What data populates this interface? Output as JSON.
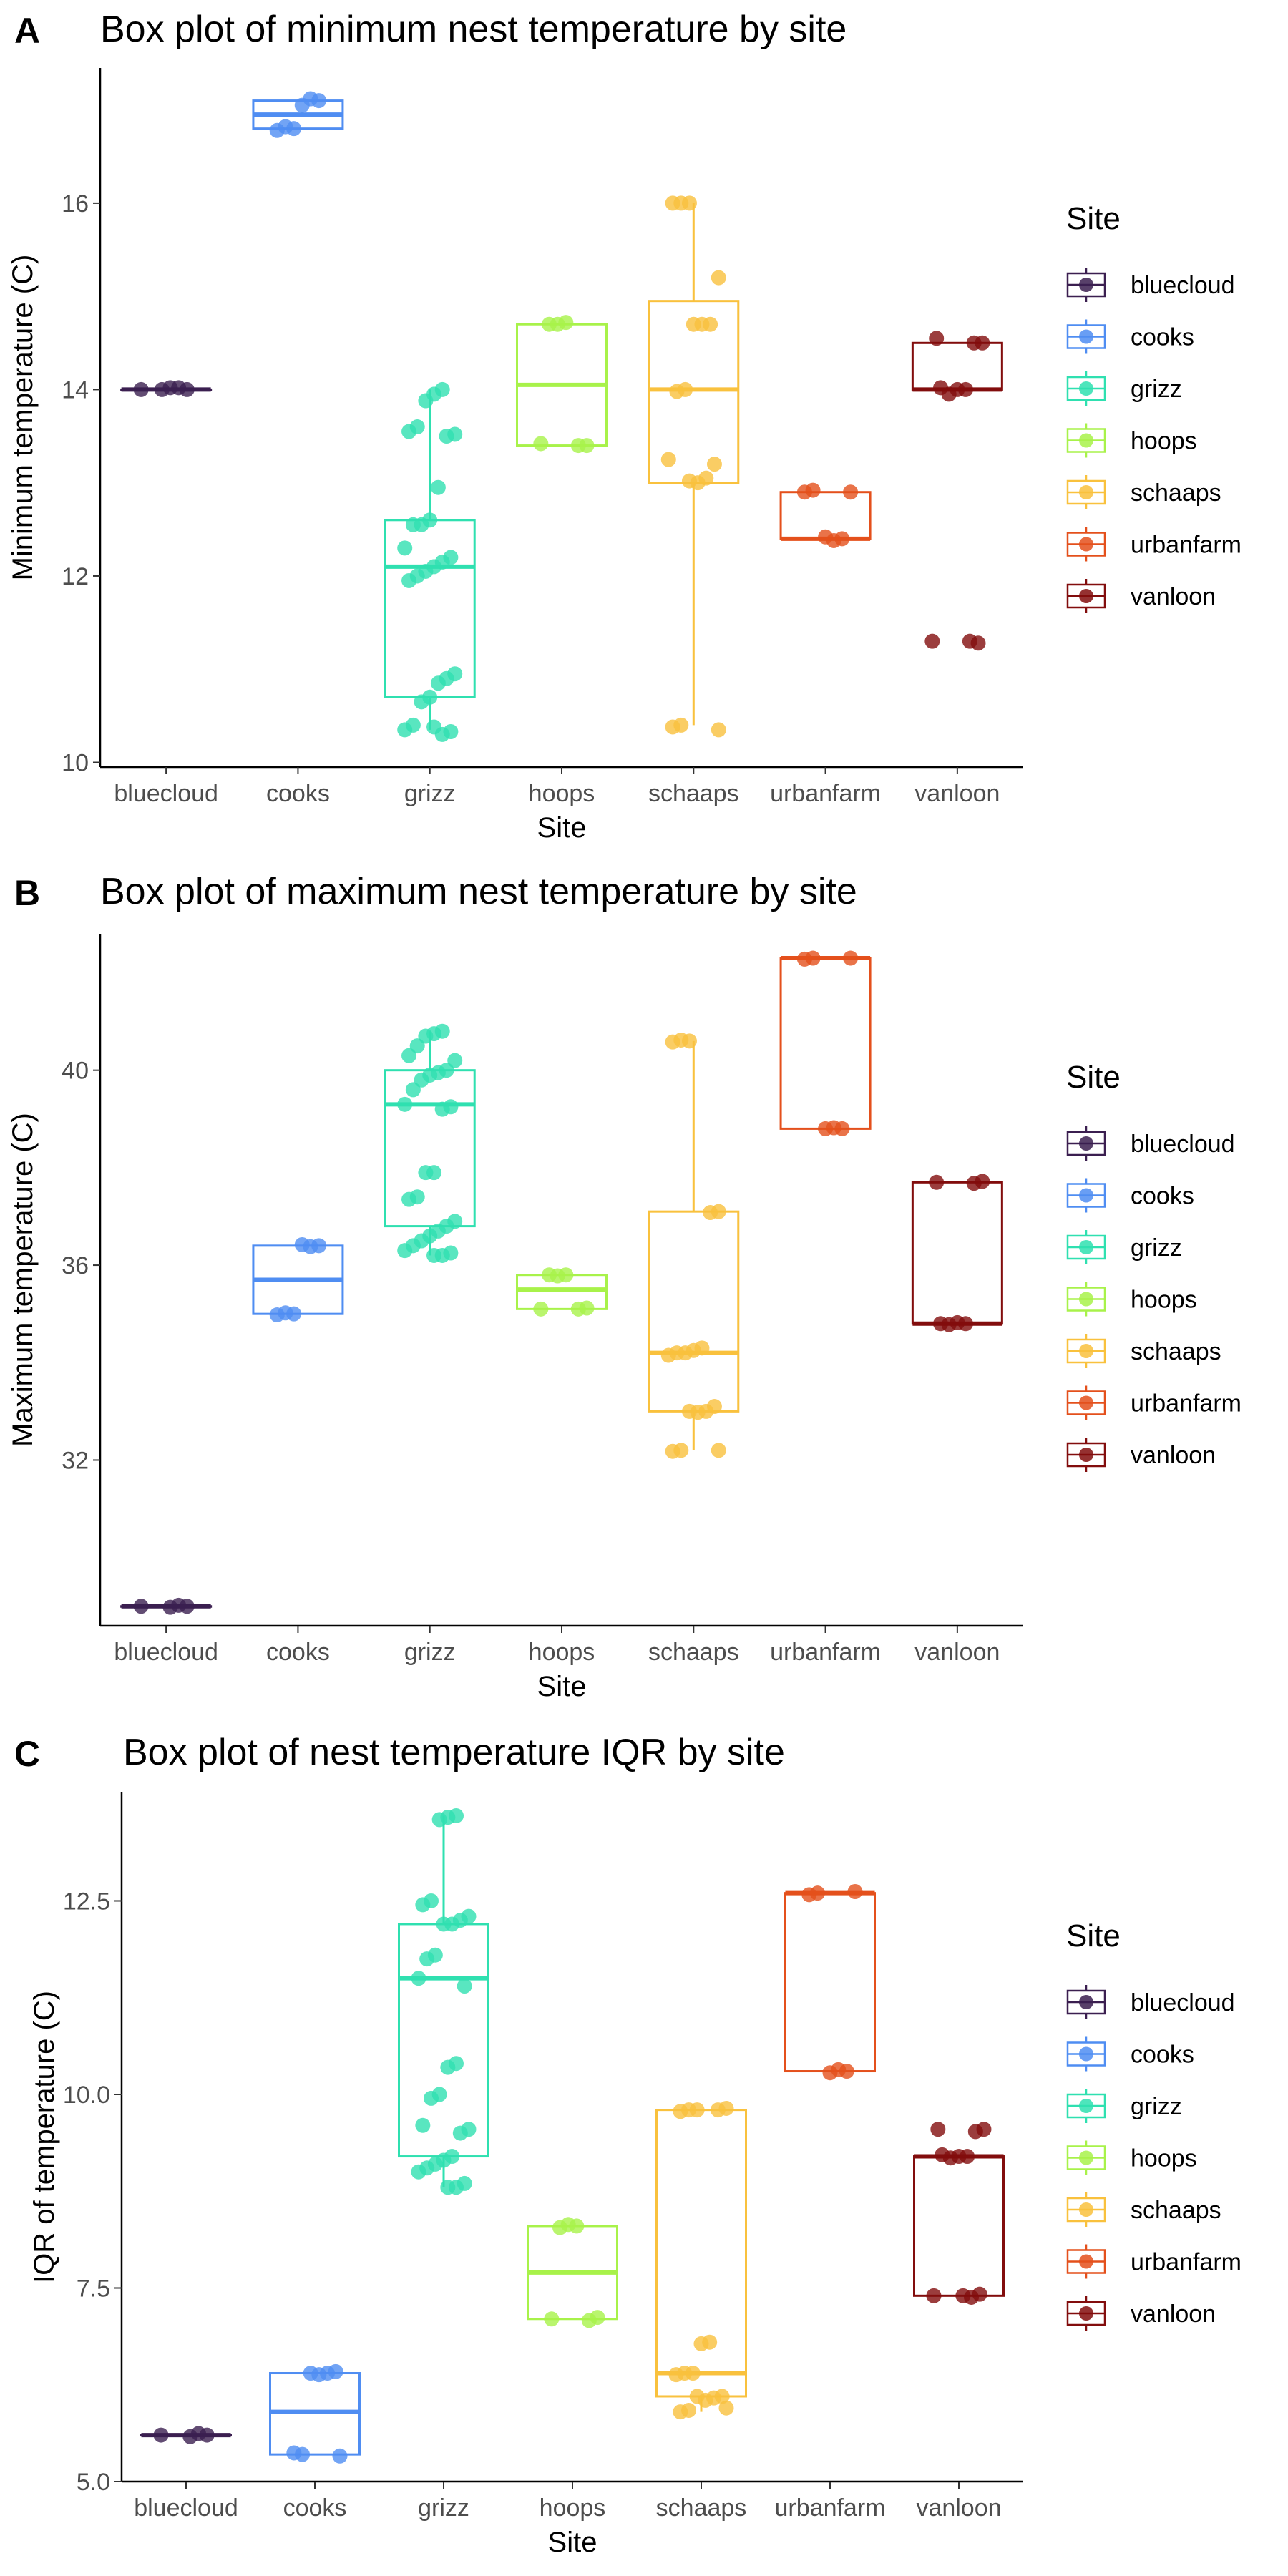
{
  "colors": {
    "bluecloud": "#3b1f50",
    "cooks": "#4f8df2",
    "grizz": "#2fe0b0",
    "hoops": "#a8f24a",
    "schaaps": "#f9c13d",
    "urbanfarm": "#e4501c",
    "vanloon": "#820d0d"
  },
  "chart_data": [
    {
      "panel": "A",
      "type": "box",
      "title": "Box plot of minimum nest temperature by site",
      "xlabel": "Site",
      "ylabel": "Minimum temperature (C)",
      "categories": [
        "bluecloud",
        "cooks",
        "grizz",
        "hoops",
        "schaaps",
        "urbanfarm",
        "vanloon"
      ],
      "yticks": [
        10,
        12,
        14,
        16
      ],
      "ylim": [
        9.95,
        17.45
      ],
      "legend": {
        "title": "Site",
        "position": "right"
      },
      "boxes": [
        {
          "site": "bluecloud",
          "min": 14.0,
          "q1": 14.0,
          "median": 14.0,
          "q3": 14.0,
          "max": 14.0
        },
        {
          "site": "cooks",
          "min": 16.8,
          "q1": 16.8,
          "median": 16.95,
          "q3": 17.1,
          "max": 17.1
        },
        {
          "site": "grizz",
          "min": 10.35,
          "q1": 10.7,
          "median": 12.1,
          "q3": 12.6,
          "max": 14.0
        },
        {
          "site": "hoops",
          "min": 13.4,
          "q1": 13.4,
          "median": 14.05,
          "q3": 14.7,
          "max": 14.7
        },
        {
          "site": "schaaps",
          "min": 10.4,
          "q1": 13.0,
          "median": 14.0,
          "q3": 14.95,
          "max": 16.0
        },
        {
          "site": "urbanfarm",
          "min": 12.4,
          "q1": 12.4,
          "median": 12.4,
          "q3": 12.9,
          "max": 12.9
        },
        {
          "site": "vanloon",
          "min": 14.0,
          "q1": 14.0,
          "median": 14.0,
          "q3": 14.5,
          "max": 14.5,
          "outliers": [
            11.3
          ]
        }
      ],
      "points": [
        {
          "site": "bluecloud",
          "values": [
            14.0,
            14.0,
            14.02,
            14.02,
            14.0
          ]
        },
        {
          "site": "cooks",
          "values": [
            17.1,
            17.12,
            17.05,
            16.8,
            16.82,
            16.78
          ]
        },
        {
          "site": "grizz",
          "values": [
            14.0,
            13.95,
            13.88,
            13.6,
            13.55,
            13.52,
            13.5,
            12.95,
            12.6,
            12.55,
            12.55,
            12.3,
            12.2,
            12.15,
            12.1,
            12.05,
            12.0,
            11.95,
            10.95,
            10.9,
            10.85,
            10.7,
            10.65,
            10.4,
            10.35,
            10.33,
            10.3,
            10.38
          ]
        },
        {
          "site": "hoops",
          "values": [
            14.72,
            14.7,
            14.7,
            13.42,
            13.4,
            13.4
          ]
        },
        {
          "site": "schaaps",
          "values": [
            16.0,
            16.0,
            16.0,
            15.2,
            14.7,
            14.7,
            14.7,
            14.0,
            13.98,
            13.25,
            13.2,
            13.05,
            13.0,
            13.02,
            10.4,
            10.38,
            10.35
          ]
        },
        {
          "site": "urbanfarm",
          "values": [
            12.92,
            12.9,
            12.9,
            12.4,
            12.38,
            12.42
          ]
        },
        {
          "site": "vanloon",
          "values": [
            14.55,
            14.5,
            14.5,
            14.0,
            14.0,
            13.95,
            14.02,
            11.3,
            11.28,
            11.3
          ]
        }
      ]
    },
    {
      "panel": "B",
      "type": "box",
      "title": "Box plot of maximum nest temperature by site",
      "xlabel": "Site",
      "ylabel": "Maximum temperature (C)",
      "categories": [
        "bluecloud",
        "cooks",
        "grizz",
        "hoops",
        "schaaps",
        "urbanfarm",
        "vanloon"
      ],
      "yticks": [
        32,
        36,
        40
      ],
      "ylim": [
        28.6,
        42.8
      ],
      "legend": {
        "title": "Site",
        "position": "right"
      },
      "boxes": [
        {
          "site": "bluecloud",
          "min": 29.0,
          "q1": 29.0,
          "median": 29.0,
          "q3": 29.0,
          "max": 29.0
        },
        {
          "site": "cooks",
          "min": 35.0,
          "q1": 35.0,
          "median": 35.7,
          "q3": 36.4,
          "max": 36.4
        },
        {
          "site": "grizz",
          "min": 36.2,
          "q1": 36.8,
          "median": 39.3,
          "q3": 40.0,
          "max": 40.8
        },
        {
          "site": "hoops",
          "min": 35.1,
          "q1": 35.1,
          "median": 35.5,
          "q3": 35.8,
          "max": 35.8
        },
        {
          "site": "schaaps",
          "min": 32.2,
          "q1": 33.0,
          "median": 34.2,
          "q3": 37.1,
          "max": 40.6
        },
        {
          "site": "urbanfarm",
          "min": 38.8,
          "q1": 38.8,
          "median": 42.3,
          "q3": 42.3,
          "max": 42.3
        },
        {
          "site": "vanloon",
          "min": 34.8,
          "q1": 34.8,
          "median": 34.8,
          "q3": 37.7,
          "max": 37.7
        }
      ],
      "points": [
        {
          "site": "bluecloud",
          "values": [
            29.0,
            29.0,
            29.02,
            28.98
          ]
        },
        {
          "site": "cooks",
          "values": [
            36.4,
            36.38,
            36.42,
            35.0,
            35.02,
            34.98
          ]
        },
        {
          "site": "grizz",
          "values": [
            40.8,
            40.75,
            40.7,
            40.5,
            40.3,
            40.2,
            40.0,
            39.95,
            39.9,
            39.8,
            39.6,
            39.3,
            39.25,
            39.2,
            37.9,
            37.9,
            37.4,
            37.35,
            36.9,
            36.8,
            36.7,
            36.6,
            36.5,
            36.4,
            36.3,
            36.25,
            36.2,
            36.2
          ]
        },
        {
          "site": "hoops",
          "values": [
            35.8,
            35.78,
            35.8,
            35.1,
            35.12,
            35.1
          ]
        },
        {
          "site": "schaaps",
          "values": [
            40.6,
            40.62,
            40.58,
            37.1,
            37.08,
            34.3,
            34.25,
            34.2,
            34.2,
            34.15,
            33.1,
            33.0,
            32.98,
            33.0,
            32.2,
            32.18,
            32.2
          ]
        },
        {
          "site": "urbanfarm",
          "values": [
            42.3,
            42.28,
            42.3,
            38.8,
            38.82,
            38.8
          ]
        },
        {
          "site": "vanloon",
          "values": [
            37.7,
            37.72,
            37.68,
            34.8,
            34.82,
            34.78,
            34.8
          ]
        }
      ]
    },
    {
      "panel": "C",
      "type": "box",
      "title": "Box plot of nest temperature IQR by site",
      "xlabel": "Site",
      "ylabel": "IQR of temperature (C)",
      "categories": [
        "bluecloud",
        "cooks",
        "grizz",
        "hoops",
        "schaaps",
        "urbanfarm",
        "vanloon"
      ],
      "yticks": [
        5.0,
        7.5,
        10.0,
        12.5
      ],
      "ytick_labels": [
        "5.0",
        "7.5",
        "10.0",
        "12.5"
      ],
      "ylim": [
        5.0,
        13.9
      ],
      "legend": {
        "title": "Site",
        "position": "right"
      },
      "boxes": [
        {
          "site": "bluecloud",
          "min": 5.6,
          "q1": 5.6,
          "median": 5.6,
          "q3": 5.6,
          "max": 5.6
        },
        {
          "site": "cooks",
          "min": 5.35,
          "q1": 5.35,
          "median": 5.9,
          "q3": 6.4,
          "max": 6.4
        },
        {
          "site": "grizz",
          "min": 8.8,
          "q1": 9.2,
          "median": 11.5,
          "q3": 12.2,
          "max": 13.6
        },
        {
          "site": "hoops",
          "min": 7.1,
          "q1": 7.1,
          "median": 7.7,
          "q3": 8.3,
          "max": 8.3
        },
        {
          "site": "schaaps",
          "min": 5.9,
          "q1": 6.1,
          "median": 6.4,
          "q3": 9.8,
          "max": 9.8
        },
        {
          "site": "urbanfarm",
          "min": 10.3,
          "q1": 10.3,
          "median": 12.6,
          "q3": 12.6,
          "max": 12.6
        },
        {
          "site": "vanloon",
          "min": 7.4,
          "q1": 7.4,
          "median": 9.2,
          "q3": 9.2,
          "max": 9.2,
          "outliers": [
            9.55
          ]
        }
      ],
      "points": [
        {
          "site": "bluecloud",
          "values": [
            5.6,
            5.6,
            5.62,
            5.58
          ]
        },
        {
          "site": "cooks",
          "values": [
            6.42,
            6.4,
            6.38,
            6.4,
            5.35,
            5.37,
            5.33
          ]
        },
        {
          "site": "grizz",
          "values": [
            13.6,
            13.58,
            13.55,
            12.5,
            12.45,
            12.3,
            12.25,
            12.2,
            12.2,
            11.8,
            11.75,
            11.5,
            11.4,
            10.4,
            10.35,
            10.0,
            9.95,
            9.6,
            9.55,
            9.5,
            9.2,
            9.15,
            9.1,
            9.05,
            9.0,
            8.85,
            8.8,
            8.8
          ]
        },
        {
          "site": "hoops",
          "values": [
            8.3,
            8.32,
            8.28,
            7.1,
            7.12,
            7.08
          ]
        },
        {
          "site": "schaaps",
          "values": [
            9.8,
            9.8,
            9.78,
            9.82,
            9.8,
            6.8,
            6.78,
            6.4,
            6.4,
            6.38,
            6.1,
            6.08,
            6.05,
            6.1,
            5.92,
            5.9,
            5.95
          ]
        },
        {
          "site": "urbanfarm",
          "values": [
            12.6,
            12.58,
            12.62,
            10.3,
            10.32,
            10.28
          ]
        },
        {
          "site": "vanloon",
          "values": [
            9.55,
            9.55,
            9.52,
            9.2,
            9.2,
            9.18,
            9.22,
            7.4,
            7.42,
            7.38,
            7.4
          ]
        }
      ]
    }
  ]
}
